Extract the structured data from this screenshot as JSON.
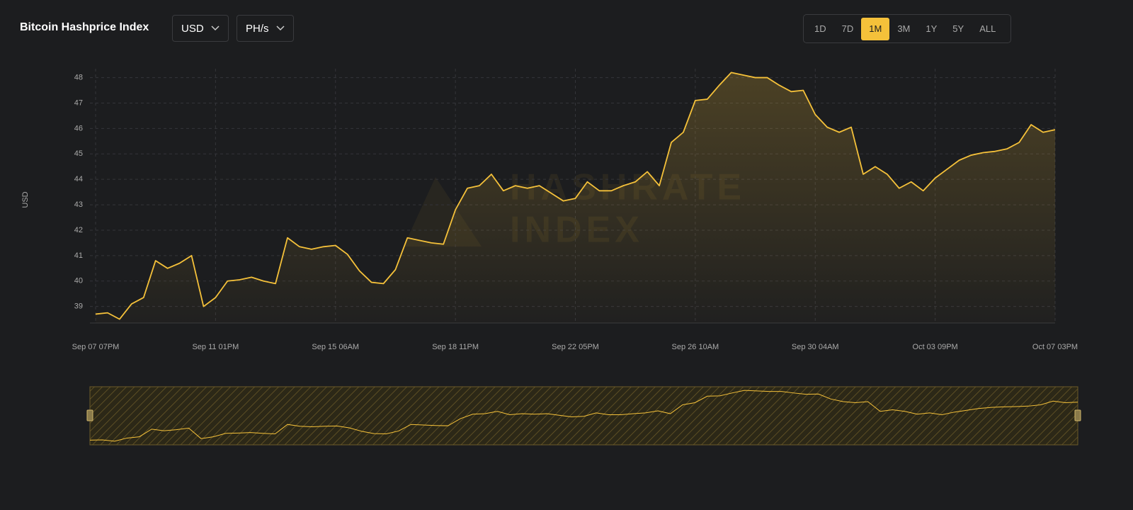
{
  "header": {
    "title": "Bitcoin Hashprice Index",
    "dropdowns": [
      "USD",
      "PH/s"
    ],
    "ranges": [
      "1D",
      "7D",
      "1M",
      "3M",
      "1Y",
      "5Y",
      "ALL"
    ],
    "selected_range": "1M"
  },
  "watermark": [
    "HASHRATE",
    "INDEX"
  ],
  "chart_data": {
    "type": "line",
    "y_label": "USD",
    "color": "#f5c13a",
    "grid": true,
    "categories": [
      "Sep 07 07PM",
      null,
      null,
      null,
      null,
      null,
      null,
      null,
      null,
      null,
      "Sep 11 01PM",
      null,
      null,
      null,
      null,
      null,
      null,
      null,
      null,
      null,
      "Sep 15 06AM",
      null,
      null,
      null,
      null,
      null,
      null,
      null,
      null,
      null,
      "Sep 18 11PM",
      null,
      null,
      null,
      null,
      null,
      null,
      null,
      null,
      null,
      "Sep 22 05PM",
      null,
      null,
      null,
      null,
      null,
      null,
      null,
      null,
      null,
      "Sep 26 10AM",
      null,
      null,
      null,
      null,
      null,
      null,
      null,
      null,
      null,
      "Sep 30 04AM",
      null,
      null,
      null,
      null,
      null,
      null,
      null,
      null,
      null,
      "Oct 03 09PM",
      null,
      null,
      null,
      null,
      null,
      null,
      null,
      null,
      null,
      "Oct 07 03PM"
    ],
    "values": [
      38.7,
      38.75,
      38.5,
      39.1,
      39.35,
      40.8,
      40.5,
      40.7,
      41.0,
      39.0,
      39.35,
      40.0,
      40.05,
      40.15,
      40.0,
      39.9,
      41.7,
      41.35,
      41.25,
      41.35,
      41.4,
      41.05,
      40.4,
      39.95,
      39.9,
      40.45,
      41.7,
      41.6,
      41.5,
      41.45,
      42.8,
      43.65,
      43.75,
      44.2,
      43.55,
      43.75,
      43.65,
      43.75,
      43.45,
      43.15,
      43.25,
      43.9,
      43.55,
      43.55,
      43.75,
      43.9,
      44.3,
      43.75,
      45.45,
      45.85,
      47.1,
      47.15,
      47.7,
      48.2,
      48.1,
      48.0,
      48.0,
      47.7,
      47.45,
      47.5,
      46.55,
      46.05,
      45.85,
      46.05,
      44.2,
      44.5,
      44.2,
      43.65,
      43.9,
      43.55,
      44.05,
      44.4,
      44.75,
      44.95,
      45.05,
      45.1,
      45.2,
      45.45,
      46.15,
      45.85,
      45.95
    ],
    "ylim": [
      38.35,
      48.35
    ],
    "yticks": [
      39,
      40,
      41,
      42,
      43,
      44,
      45,
      46,
      47,
      48
    ]
  }
}
